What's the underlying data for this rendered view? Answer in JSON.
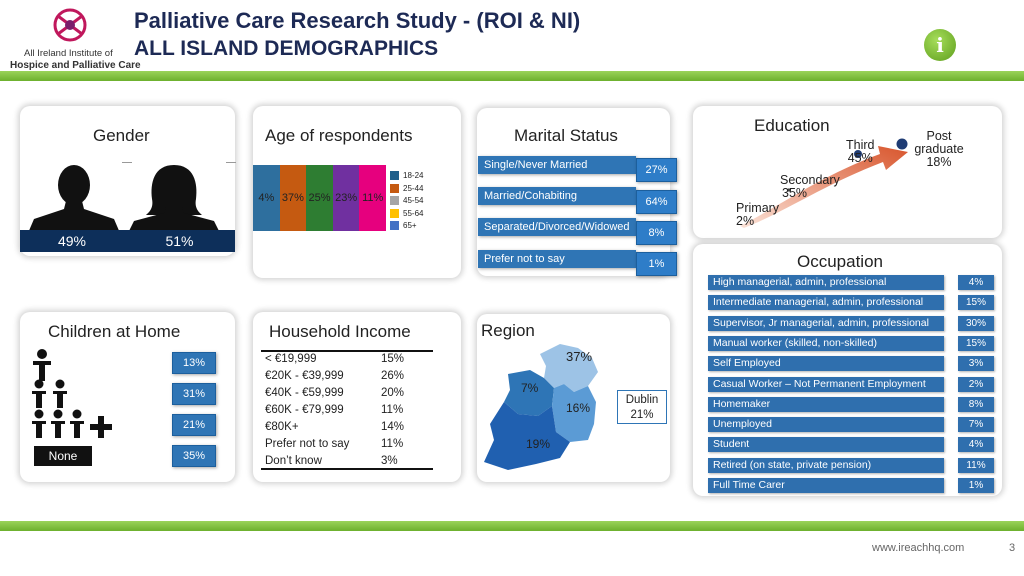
{
  "header": {
    "title_line1": "Palliative Care Research Study - (ROI & NI)",
    "title_line2": "ALL ISLAND DEMOGRAPHICS",
    "logo_text_line1": "All Ireland Institute of",
    "logo_text_line2": "Hospice and Palliative Care"
  },
  "gender": {
    "title": "Gender",
    "male_pct": "49%",
    "female_pct": "51%"
  },
  "age": {
    "title": "Age of respondents",
    "bars": [
      {
        "label": "18-24",
        "value": "4%",
        "color": "#2e6f9e"
      },
      {
        "label": "25-44",
        "value": "37%",
        "color": "#c55a11"
      },
      {
        "label": "45-54",
        "value": "25%",
        "color": "#2e7d32"
      },
      {
        "label": "55-64",
        "value": "23%",
        "color": "#7030a0"
      },
      {
        "label": "65+",
        "value": "11%",
        "color": "#e6007e"
      }
    ],
    "legend": [
      {
        "label": "18-24",
        "color": "#1f5f8b"
      },
      {
        "label": "25-44",
        "color": "#c55a11"
      },
      {
        "label": "45-54",
        "color": "#a5a5a5"
      },
      {
        "label": "55-64",
        "color": "#ffc000"
      },
      {
        "label": "65+",
        "color": "#4472c4"
      }
    ]
  },
  "marital": {
    "title": "Marital Status",
    "items": [
      {
        "label": "Single/Never Married",
        "value": "27%"
      },
      {
        "label": "Married/Cohabiting",
        "value": "64%"
      },
      {
        "label": "Separated/Divorced/Widowed",
        "value": "8%"
      },
      {
        "label": "Prefer not to say",
        "value": "1%"
      }
    ]
  },
  "education": {
    "title": "Education",
    "levels": [
      {
        "label": "Primary",
        "value": "2%"
      },
      {
        "label": "Secondary",
        "value": "35%"
      },
      {
        "label": "Third",
        "value": "45%"
      },
      {
        "label": "Post graduate",
        "value": "18%"
      }
    ]
  },
  "occupation": {
    "title": "Occupation",
    "items": [
      {
        "label": "High managerial, admin, professional",
        "value": "4%"
      },
      {
        "label": "Intermediate managerial, admin, professional",
        "value": "15%"
      },
      {
        "label": "Supervisor, Jr managerial, admin, professional",
        "value": "30%"
      },
      {
        "label": "Manual worker (skilled, non-skilled)",
        "value": "15%"
      },
      {
        "label": "Self Employed",
        "value": "3%"
      },
      {
        "label": "Casual Worker – Not Permanent Employment",
        "value": "2%"
      },
      {
        "label": "Homemaker",
        "value": "8%"
      },
      {
        "label": "Unemployed",
        "value": "7%"
      },
      {
        "label": "Student",
        "value": "4%"
      },
      {
        "label": "Retired (on state, private pension)",
        "value": "11%"
      },
      {
        "label": "Full Time Carer",
        "value": "1%"
      }
    ]
  },
  "children": {
    "title": "Children at Home",
    "none_label": "None",
    "values": [
      "13%",
      "31%",
      "21%",
      "35%"
    ]
  },
  "income": {
    "title": "Household Income",
    "rows": [
      {
        "label": "< €19,999",
        "value": "15%"
      },
      {
        "label": "€20K - €39,999",
        "value": "26%"
      },
      {
        "label": "€40K - €59,999",
        "value": "20%"
      },
      {
        "label": "€60K - €79,999",
        "value": "11%"
      },
      {
        "label": "€80K+",
        "value": "14%"
      },
      {
        "label": "Prefer not to say",
        "value": "11%"
      },
      {
        "label": "Don’t know",
        "value": "3%"
      }
    ]
  },
  "region": {
    "title": "Region",
    "ulster": "37%",
    "connacht": "7%",
    "leinster": "16%",
    "munster": "19%",
    "dublin_label": "Dublin",
    "dublin_value": "21%"
  },
  "footer": {
    "url": "www.ireachhq.com",
    "page": "3"
  }
}
